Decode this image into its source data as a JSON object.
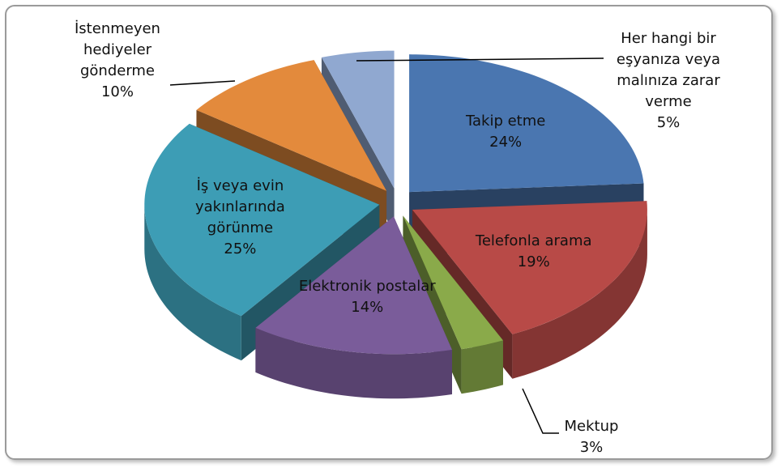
{
  "chart_data": {
    "type": "pie3d",
    "categories": [
      "Takip etme",
      "Telefonla arama",
      "Mektup",
      "Elektronik postalar",
      "İş veya evin yakınlarında görünme",
      "İstenmeyen hediyeler gönderme",
      "Her hangi bir eşyanıza veya malınıza zarar verme"
    ],
    "values": [
      24,
      19,
      3,
      14,
      25,
      10,
      5
    ],
    "value_labels": [
      "24%",
      "19%",
      "3%",
      "14%",
      "25%",
      "10%",
      "5%"
    ],
    "colors": [
      "#4a76b0",
      "#b84a47",
      "#8aaa4a",
      "#7a5c9a",
      "#3d9db5",
      "#e38a3c",
      "#90a8d0"
    ]
  }
}
